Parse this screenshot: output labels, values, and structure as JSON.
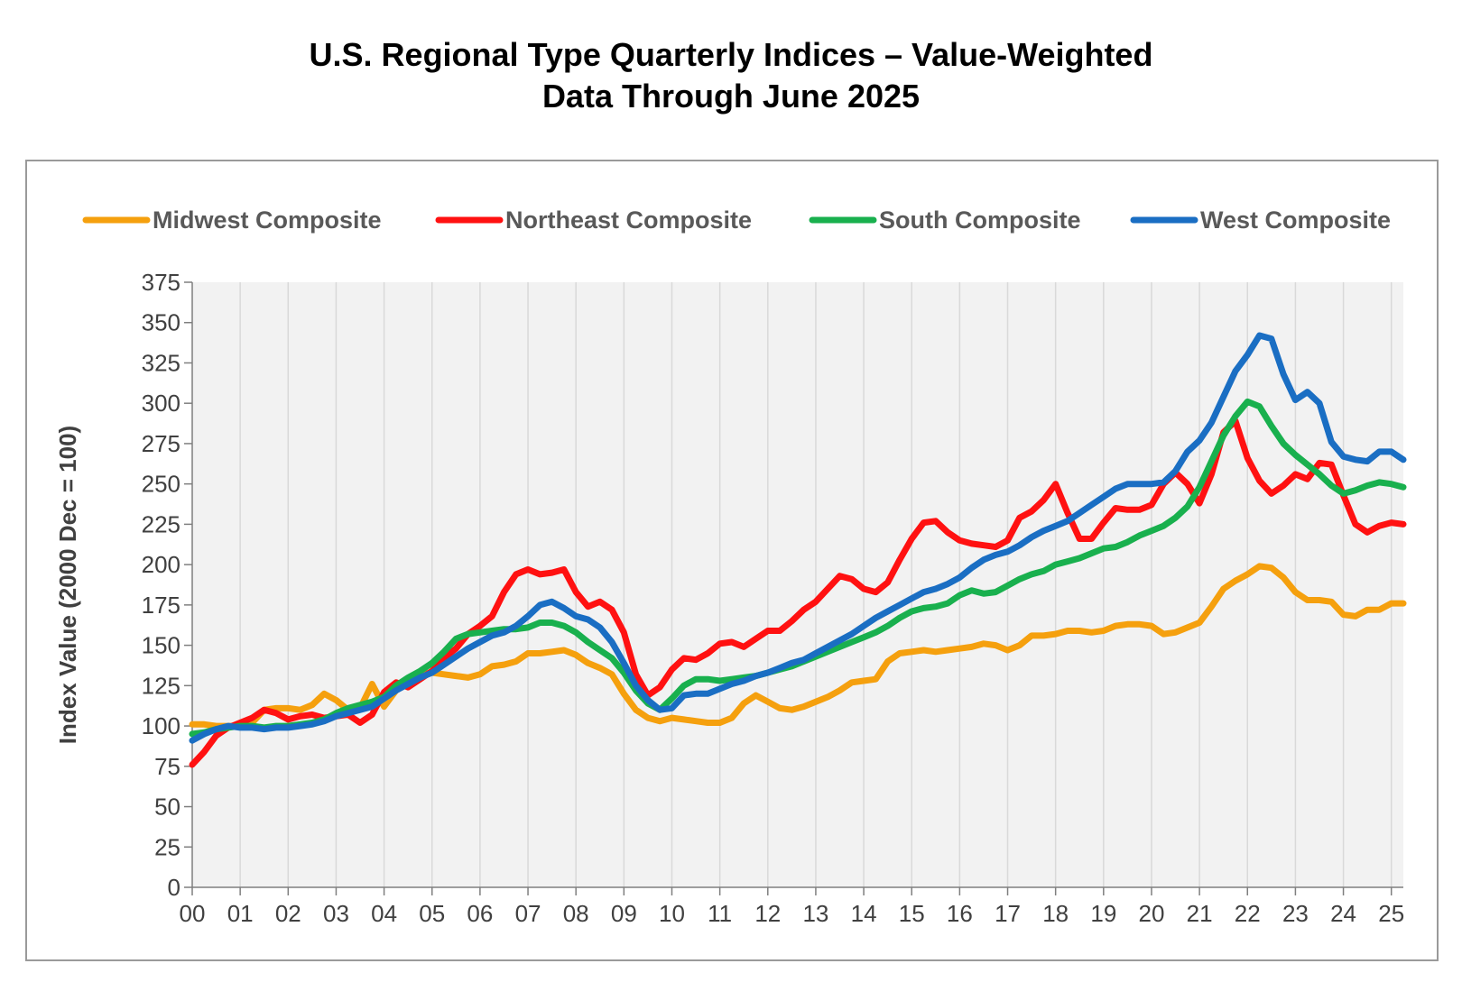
{
  "chart_data": {
    "type": "line",
    "title": "U.S. Regional Type Quarterly Indices – Value-Weighted",
    "subtitle": "Data Through June 2025",
    "xlabel": "",
    "ylabel": "Index Value (2000 Dec = 100)",
    "ylim": [
      0,
      375
    ],
    "yticks": [
      0,
      25,
      50,
      75,
      100,
      125,
      150,
      175,
      200,
      225,
      250,
      275,
      300,
      325,
      350,
      375
    ],
    "xlim": [
      0,
      25.25
    ],
    "xticks": [
      "00",
      "01",
      "02",
      "03",
      "04",
      "05",
      "06",
      "07",
      "08",
      "09",
      "10",
      "11",
      "12",
      "13",
      "14",
      "15",
      "16",
      "17",
      "18",
      "19",
      "20",
      "21",
      "22",
      "23",
      "24",
      "25"
    ],
    "x_unit": "years since 2000 (quarterly points)",
    "grid": "vertical lines",
    "legend_position": "top",
    "series": [
      {
        "name": "Midwest Composite",
        "color": "#F5A00E",
        "values": [
          101,
          101,
          100,
          100,
          100,
          102,
          110,
          111,
          111,
          110,
          113,
          120,
          116,
          110,
          111,
          126,
          112,
          122,
          128,
          132,
          133,
          132,
          131,
          130,
          132,
          137,
          138,
          140,
          145,
          145,
          146,
          147,
          144,
          139,
          136,
          132,
          120,
          110,
          105,
          103,
          105,
          104,
          103,
          102,
          102,
          105,
          114,
          119,
          115,
          111,
          110,
          112,
          115,
          118,
          122,
          127,
          128,
          129,
          140,
          145,
          146,
          147,
          146,
          147,
          148,
          149,
          151,
          150,
          147,
          150,
          156,
          156,
          157,
          159,
          159,
          158,
          159,
          162,
          163,
          163,
          162,
          157,
          158,
          161,
          164,
          174,
          185,
          190,
          194,
          199,
          198,
          192,
          183,
          178,
          178,
          177,
          169,
          168,
          172,
          172,
          176,
          176
        ]
      },
      {
        "name": "Northeast Composite",
        "color": "#FF1111",
        "values": [
          76,
          84,
          94,
          99,
          102,
          105,
          110,
          108,
          104,
          106,
          107,
          105,
          106,
          107,
          102,
          107,
          121,
          127,
          124,
          129,
          134,
          142,
          148,
          157,
          162,
          168,
          183,
          194,
          197,
          194,
          195,
          197,
          183,
          174,
          177,
          172,
          158,
          132,
          119,
          124,
          135,
          142,
          141,
          145,
          151,
          152,
          149,
          154,
          159,
          159,
          165,
          172,
          177,
          185,
          193,
          191,
          185,
          183,
          189,
          203,
          216,
          226,
          227,
          220,
          215,
          213,
          212,
          211,
          215,
          229,
          233,
          240,
          250,
          232,
          216,
          216,
          226,
          235,
          234,
          234,
          237,
          250,
          257,
          250,
          238,
          256,
          282,
          289,
          266,
          252,
          244,
          249,
          256,
          253,
          263,
          262,
          243,
          225,
          220,
          224,
          226,
          225
        ]
      },
      {
        "name": "South Composite",
        "color": "#19B04E",
        "values": [
          95,
          96,
          98,
          99,
          100,
          100,
          99,
          100,
          100,
          101,
          102,
          104,
          108,
          111,
          113,
          115,
          118,
          125,
          130,
          134,
          139,
          146,
          154,
          157,
          158,
          159,
          160,
          160,
          161,
          164,
          164,
          162,
          158,
          152,
          147,
          142,
          133,
          122,
          114,
          110,
          117,
          125,
          129,
          129,
          128,
          129,
          130,
          131,
          133,
          135,
          137,
          140,
          143,
          146,
          149,
          152,
          155,
          158,
          162,
          167,
          171,
          173,
          174,
          176,
          181,
          184,
          182,
          183,
          187,
          191,
          194,
          196,
          200,
          202,
          204,
          207,
          210,
          211,
          214,
          218,
          221,
          224,
          229,
          236,
          248,
          264,
          280,
          292,
          301,
          298,
          286,
          275,
          268,
          262,
          256,
          249,
          244,
          246,
          249,
          251,
          250,
          248
        ]
      },
      {
        "name": "West Composite",
        "color": "#1A6EC3",
        "values": [
          91,
          95,
          98,
          100,
          99,
          99,
          98,
          99,
          99,
          100,
          101,
          103,
          106,
          108,
          110,
          112,
          117,
          122,
          126,
          130,
          133,
          138,
          143,
          148,
          152,
          156,
          158,
          162,
          168,
          175,
          177,
          173,
          168,
          166,
          161,
          152,
          139,
          125,
          116,
          110,
          111,
          119,
          120,
          120,
          123,
          126,
          128,
          131,
          133,
          136,
          139,
          141,
          145,
          149,
          153,
          157,
          162,
          167,
          171,
          175,
          179,
          183,
          185,
          188,
          192,
          198,
          203,
          206,
          208,
          212,
          217,
          221,
          224,
          227,
          232,
          237,
          242,
          247,
          250,
          250,
          250,
          251,
          258,
          270,
          277,
          288,
          304,
          320,
          330,
          342,
          340,
          318,
          302,
          307,
          300,
          276,
          267,
          265,
          264,
          270,
          270,
          265
        ]
      }
    ]
  }
}
